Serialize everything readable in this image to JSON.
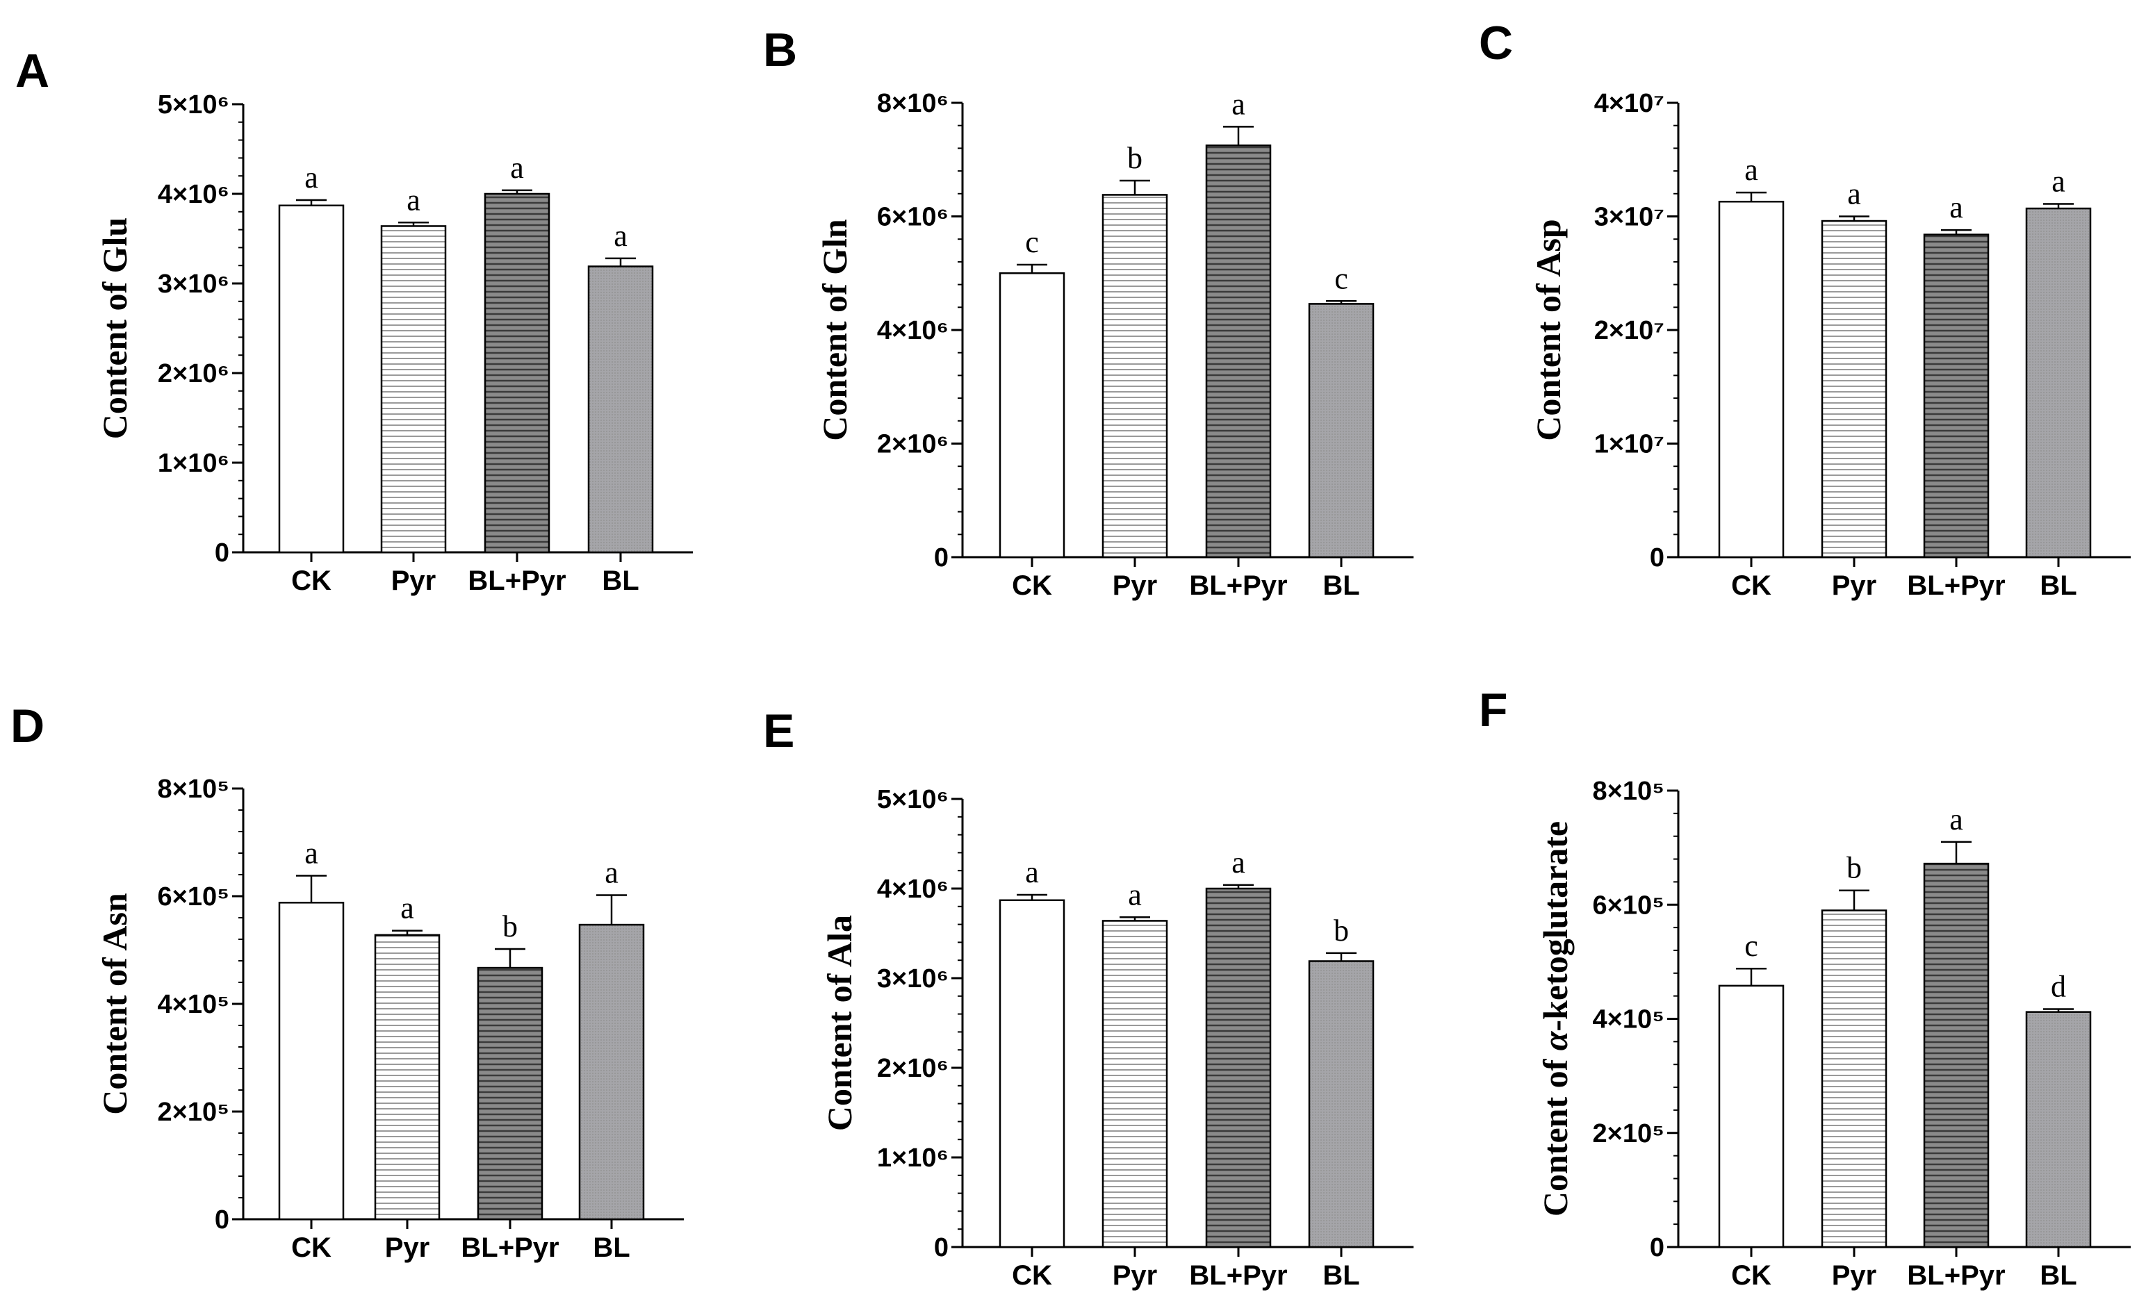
{
  "chart_data": [
    {
      "type": "bar",
      "panel": "A",
      "ylabel": "Content of Glu",
      "categories": [
        "CK",
        "Pyr",
        "BL+Pyr",
        "BL"
      ],
      "values": [
        3870000,
        3640000,
        4000000,
        3190000
      ],
      "errors": [
        60000,
        40000,
        40000,
        90000
      ],
      "significance": [
        "a",
        "a",
        "a",
        "a"
      ],
      "ylim": [
        0,
        5000000
      ],
      "yticks": [
        {
          "value": 0,
          "label": "0"
        },
        {
          "value": 1000000,
          "label": "1×10⁶"
        },
        {
          "value": 2000000,
          "label": "2×10⁶"
        },
        {
          "value": 3000000,
          "label": "3×10⁶"
        },
        {
          "value": 4000000,
          "label": "4×10⁶"
        },
        {
          "value": 5000000,
          "label": "5×10⁶"
        }
      ]
    },
    {
      "type": "bar",
      "panel": "B",
      "ylabel": "Content of Gln",
      "categories": [
        "CK",
        "Pyr",
        "BL+Pyr",
        "BL"
      ],
      "values": [
        5000000,
        6380000,
        7250000,
        4460000
      ],
      "errors": [
        150000,
        250000,
        330000,
        50000
      ],
      "significance": [
        "c",
        "b",
        "a",
        "c"
      ],
      "ylim": [
        0,
        8000000
      ],
      "yticks": [
        {
          "value": 0,
          "label": "0"
        },
        {
          "value": 2000000,
          "label": "2×10⁶"
        },
        {
          "value": 4000000,
          "label": "4×10⁶"
        },
        {
          "value": 6000000,
          "label": "6×10⁶"
        },
        {
          "value": 8000000,
          "label": "8×10⁶"
        }
      ]
    },
    {
      "type": "bar",
      "panel": "C",
      "ylabel": "Content of Asp",
      "categories": [
        "CK",
        "Pyr",
        "BL+Pyr",
        "BL"
      ],
      "values": [
        31300000,
        29600000,
        28400000,
        30700000
      ],
      "errors": [
        800000,
        400000,
        400000,
        400000
      ],
      "significance": [
        "a",
        "a",
        "a",
        "a"
      ],
      "ylim": [
        0,
        40000000
      ],
      "yticks": [
        {
          "value": 0,
          "label": "0"
        },
        {
          "value": 10000000,
          "label": "1×10⁷"
        },
        {
          "value": 20000000,
          "label": "2×10⁷"
        },
        {
          "value": 30000000,
          "label": "3×10⁷"
        },
        {
          "value": 40000000,
          "label": "4×10⁷"
        }
      ]
    },
    {
      "type": "bar",
      "panel": "D",
      "ylabel": "Content of Asn",
      "categories": [
        "CK",
        "Pyr",
        "BL+Pyr",
        "BL"
      ],
      "values": [
        588000,
        528000,
        467000,
        547000
      ],
      "errors": [
        50000,
        8000,
        35000,
        55000
      ],
      "significance": [
        "a",
        "a",
        "b",
        "a"
      ],
      "ylim": [
        0,
        800000
      ],
      "yticks": [
        {
          "value": 0,
          "label": "0"
        },
        {
          "value": 200000,
          "label": "2×10⁵"
        },
        {
          "value": 400000,
          "label": "4×10⁵"
        },
        {
          "value": 600000,
          "label": "6×10⁵"
        },
        {
          "value": 800000,
          "label": "8×10⁵"
        }
      ]
    },
    {
      "type": "bar",
      "panel": "E",
      "ylabel": "Content of Ala",
      "categories": [
        "CK",
        "Pyr",
        "BL+Pyr",
        "BL"
      ],
      "values": [
        3870000,
        3640000,
        4000000,
        3190000
      ],
      "errors": [
        60000,
        40000,
        40000,
        90000
      ],
      "significance": [
        "a",
        "a",
        "a",
        "b"
      ],
      "ylim": [
        0,
        5000000
      ],
      "yticks": [
        {
          "value": 0,
          "label": "0"
        },
        {
          "value": 1000000,
          "label": "1×10⁶"
        },
        {
          "value": 2000000,
          "label": "2×10⁶"
        },
        {
          "value": 3000000,
          "label": "3×10⁶"
        },
        {
          "value": 4000000,
          "label": "4×10⁶"
        },
        {
          "value": 5000000,
          "label": "5×10⁶"
        }
      ]
    },
    {
      "type": "bar",
      "panel": "F",
      "ylabel": "Content of α-ketoglutarate",
      "ylabel_parts": [
        "Content of ",
        "α",
        "-ketoglutarate"
      ],
      "categories": [
        "CK",
        "Pyr",
        "BL+Pyr",
        "BL"
      ],
      "values": [
        458000,
        590000,
        672000,
        412000
      ],
      "errors": [
        30000,
        35000,
        38000,
        5000
      ],
      "significance": [
        "c",
        "b",
        "a",
        "d"
      ],
      "ylim": [
        0,
        800000
      ],
      "yticks": [
        {
          "value": 0,
          "label": "0"
        },
        {
          "value": 200000,
          "label": "2×10⁵"
        },
        {
          "value": 400000,
          "label": "4×10⁵"
        },
        {
          "value": 600000,
          "label": "6×10⁵"
        },
        {
          "value": 800000,
          "label": "8×10⁵"
        }
      ]
    }
  ],
  "colors": {
    "CK": "#ffffff",
    "Pyr": "#ffffff",
    "BL+Pyr": "#777777",
    "BL": "#a3a3a7",
    "Pyr_lines": "#9a9a9a",
    "BLPyr_lines": "#444444"
  }
}
